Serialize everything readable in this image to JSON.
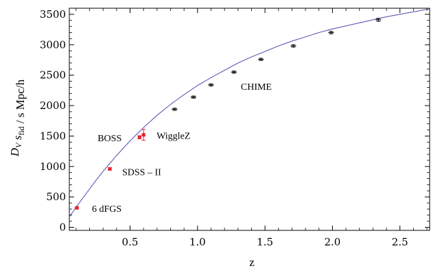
{
  "chart_data": {
    "type": "scatter",
    "xlabel": "z",
    "ylabel": "D_V s_fid / s Mpc/h",
    "xlim": [
      0.05,
      2.72
    ],
    "ylim": [
      -50,
      3600
    ],
    "xticks": [
      {
        "value": 0.5,
        "label": "0.5"
      },
      {
        "value": 1.0,
        "label": "1.0"
      },
      {
        "value": 1.5,
        "label": "1.5"
      },
      {
        "value": 2.0,
        "label": "2.0"
      },
      {
        "value": 2.5,
        "label": "2.5"
      }
    ],
    "yticks": [
      {
        "value": 0,
        "label": "0"
      },
      {
        "value": 500,
        "label": "500"
      },
      {
        "value": 1000,
        "label": "1000"
      },
      {
        "value": 1500,
        "label": "1500"
      },
      {
        "value": 2000,
        "label": "2000"
      },
      {
        "value": 2500,
        "label": "2500"
      },
      {
        "value": 3000,
        "label": "3000"
      },
      {
        "value": 3500,
        "label": "3500"
      }
    ],
    "grid": false,
    "model_curve": {
      "color": "#5a5ab4",
      "x": [
        0.05,
        0.1,
        0.15,
        0.2,
        0.25,
        0.3,
        0.35,
        0.4,
        0.45,
        0.5,
        0.6,
        0.7,
        0.8,
        0.9,
        1.0,
        1.1,
        1.2,
        1.3,
        1.4,
        1.5,
        1.6,
        1.7,
        1.8,
        1.9,
        2.0,
        2.2,
        2.4,
        2.6,
        2.72
      ],
      "y": [
        170,
        330,
        480,
        630,
        780,
        920,
        1050,
        1180,
        1300,
        1420,
        1640,
        1840,
        2020,
        2180,
        2330,
        2460,
        2580,
        2700,
        2800,
        2890,
        2980,
        3060,
        3130,
        3200,
        3260,
        3360,
        3460,
        3540,
        3590
      ]
    },
    "series": [
      {
        "color": "#e8202a",
        "points": [
          {
            "x": 0.106,
            "y": 320,
            "err": 15,
            "label": "6 dFGS"
          },
          {
            "x": 0.35,
            "y": 960,
            "err": 20,
            "label": "SDSS – II"
          },
          {
            "x": 0.57,
            "y": 1480,
            "err": 25,
            "label": "BOSS"
          },
          {
            "x": 0.6,
            "y": 1520,
            "err": 90,
            "label": "WiggleZ"
          }
        ]
      },
      {
        "color": "#000000",
        "points": [
          {
            "x": 0.83,
            "y": 1940,
            "err": 18
          },
          {
            "x": 0.97,
            "y": 2140,
            "err": 18
          },
          {
            "x": 1.1,
            "y": 2340,
            "err": 18
          },
          {
            "x": 1.27,
            "y": 2550,
            "err": 18,
            "label": "CHIME"
          },
          {
            "x": 1.47,
            "y": 2760,
            "err": 18
          },
          {
            "x": 1.71,
            "y": 2980,
            "err": 20
          },
          {
            "x": 1.99,
            "y": 3200,
            "err": 20
          },
          {
            "x": 2.34,
            "y": 3410,
            "err": 25
          }
        ]
      }
    ]
  }
}
